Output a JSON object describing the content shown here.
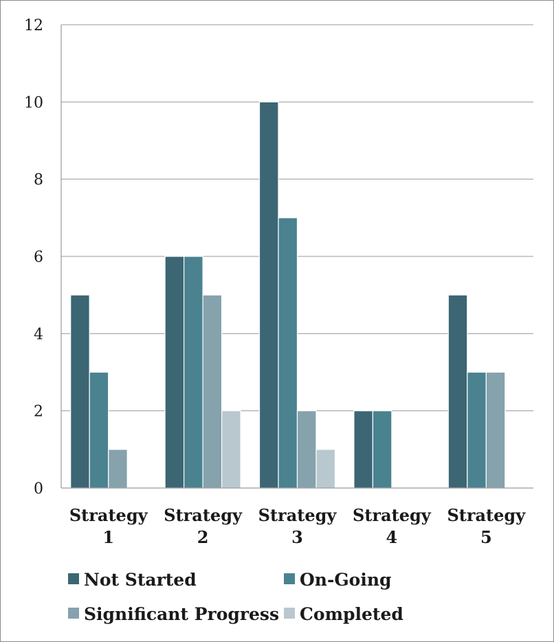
{
  "chart_data": {
    "type": "bar",
    "categories": [
      [
        "Strategy",
        "1"
      ],
      [
        "Strategy",
        "2"
      ],
      [
        "Strategy",
        "3"
      ],
      [
        "Strategy",
        "4"
      ],
      [
        "Strategy",
        "5"
      ]
    ],
    "series": [
      {
        "name": "Not Started",
        "color": "#3c6674",
        "values": [
          5,
          6,
          10,
          2,
          5
        ]
      },
      {
        "name": "On-Going",
        "color": "#4a8290",
        "values": [
          3,
          6,
          7,
          2,
          3
        ]
      },
      {
        "name": "Significant Progress",
        "color": "#85a2ad",
        "values": [
          1,
          5,
          2,
          0,
          3
        ]
      },
      {
        "name": "Completed",
        "color": "#b9c8cf",
        "values": [
          0,
          2,
          1,
          0,
          0
        ]
      }
    ],
    "ylim": [
      0,
      12
    ],
    "yticks": [
      "0",
      "2",
      "4",
      "6",
      "8",
      "10",
      "12"
    ],
    "grid": true,
    "legend_position": "bottom"
  }
}
